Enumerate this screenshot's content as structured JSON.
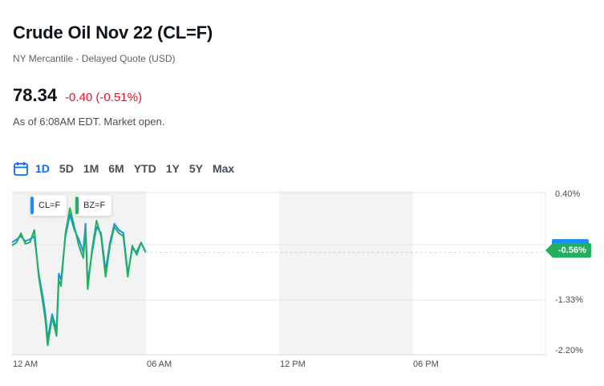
{
  "quote": {
    "title": "Crude Oil Nov 22 (CL=F)",
    "exchange": "NY Mercantile - Delayed Quote (USD)",
    "price": "78.34",
    "change": "-0.40 (-0.51%)",
    "as_of": "As of 6:08AM EDT. Market open."
  },
  "ranges": {
    "icon": "calendar-icon",
    "items": [
      "1D",
      "5D",
      "1M",
      "6M",
      "YTD",
      "1Y",
      "5Y",
      "Max"
    ],
    "active": "1D"
  },
  "legend": {
    "series1": "CL=F",
    "series2": "BZ=F"
  },
  "colors": {
    "cl": "#1b8ef2",
    "bz": "#21b05e",
    "negative": "#eb0f29",
    "active_range": "#0f69ff"
  },
  "current_tag": "-0.56%",
  "chart_data": {
    "type": "line",
    "ylabels": [
      "0.40%",
      "-1.33%",
      "-2.20%"
    ],
    "xlabels": [
      "12 AM",
      "06 AM",
      "12 PM",
      "06 PM"
    ],
    "ylim": [
      -2.2,
      0.4
    ],
    "series": [
      {
        "name": "CL=F",
        "x": [
          0,
          0.2,
          0.4,
          0.6,
          0.8,
          1.0,
          1.2,
          1.4,
          1.5,
          1.6,
          1.8,
          2.0,
          2.1,
          2.2,
          2.4,
          2.6,
          2.8,
          3.0,
          3.2,
          3.3,
          3.4,
          3.6,
          3.8,
          4.0,
          4.2,
          4.4,
          4.6,
          4.8,
          5.0,
          5.2,
          5.4,
          5.6,
          5.8,
          6.0
        ],
        "values": [
          -0.4,
          -0.35,
          -0.3,
          -0.38,
          -0.35,
          -0.3,
          -0.9,
          -1.3,
          -1.55,
          -1.95,
          -1.55,
          -1.8,
          -0.9,
          -1.0,
          -0.3,
          0.05,
          -0.2,
          -0.35,
          -0.55,
          -0.1,
          -1.05,
          -0.55,
          -0.15,
          -0.25,
          -0.85,
          -0.4,
          -0.1,
          -0.2,
          -0.25,
          -0.9,
          -0.5,
          -0.55,
          -0.4,
          -0.55
        ]
      },
      {
        "name": "BZ=F",
        "x": [
          0,
          0.2,
          0.4,
          0.6,
          0.8,
          1.0,
          1.2,
          1.4,
          1.5,
          1.6,
          1.8,
          2.0,
          2.1,
          2.2,
          2.4,
          2.6,
          2.8,
          3.0,
          3.2,
          3.3,
          3.4,
          3.6,
          3.8,
          4.0,
          4.2,
          4.4,
          4.6,
          4.8,
          5.0,
          5.2,
          5.4,
          5.6,
          5.8,
          6.0
        ],
        "values": [
          -0.45,
          -0.4,
          -0.25,
          -0.42,
          -0.4,
          -0.2,
          -0.95,
          -1.4,
          -1.65,
          -2.05,
          -1.6,
          -1.9,
          -1.0,
          -1.1,
          -0.25,
          0.15,
          -0.15,
          -0.45,
          -0.65,
          -0.2,
          -1.15,
          -0.5,
          -0.05,
          -0.3,
          -0.95,
          -0.45,
          -0.15,
          -0.25,
          -0.3,
          -0.95,
          -0.45,
          -0.6,
          -0.4,
          -0.56
        ]
      }
    ]
  }
}
